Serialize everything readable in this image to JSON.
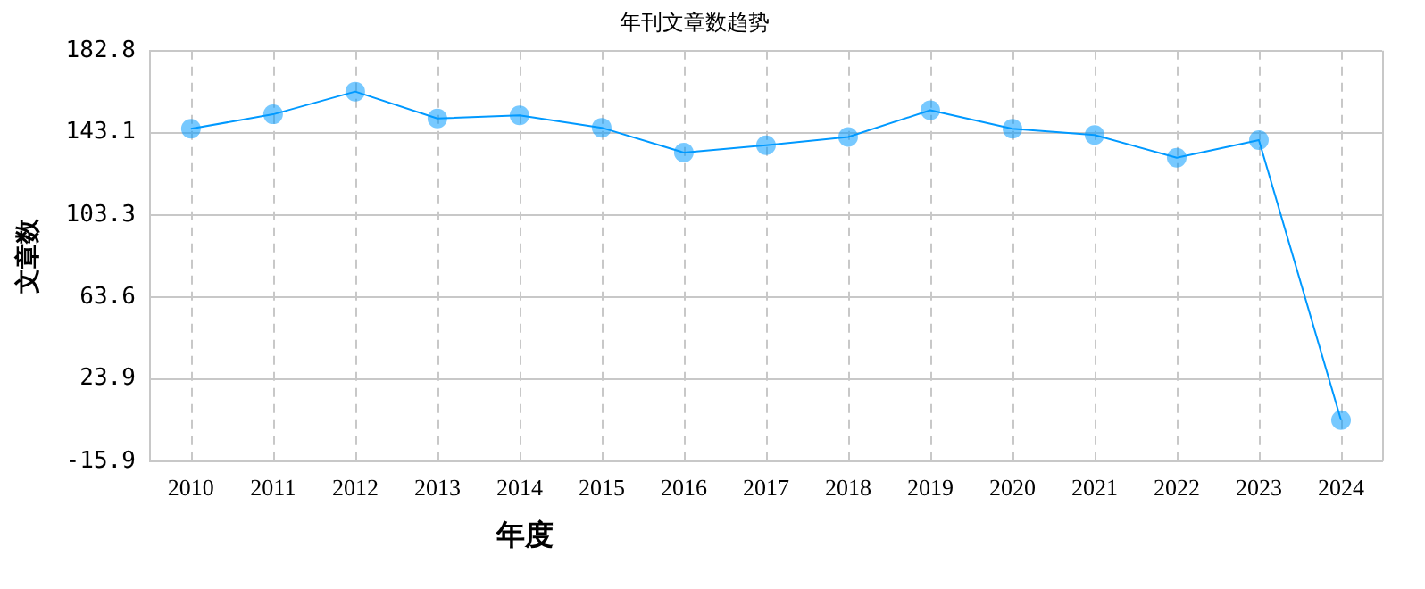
{
  "chart_data": {
    "type": "line",
    "title": "年刊文章数趋势",
    "xlabel": "年度",
    "ylabel": "文章数",
    "categories": [
      "2010",
      "2011",
      "2012",
      "2013",
      "2014",
      "2015",
      "2016",
      "2017",
      "2018",
      "2019",
      "2020",
      "2021",
      "2022",
      "2023",
      "2024"
    ],
    "series": [
      {
        "color": "#0099ff",
        "values": [
          145,
          152,
          163,
          150,
          151.5,
          145.5,
          133.5,
          137,
          141,
          154,
          145,
          142,
          131,
          139.5,
          4
        ]
      }
    ],
    "ylim": [
      -15.9,
      182.8
    ],
    "yticks": [
      -15.9,
      23.9,
      63.6,
      103.3,
      143.1,
      182.8
    ],
    "grid": true,
    "marker": "circle",
    "line_style": "solid"
  }
}
